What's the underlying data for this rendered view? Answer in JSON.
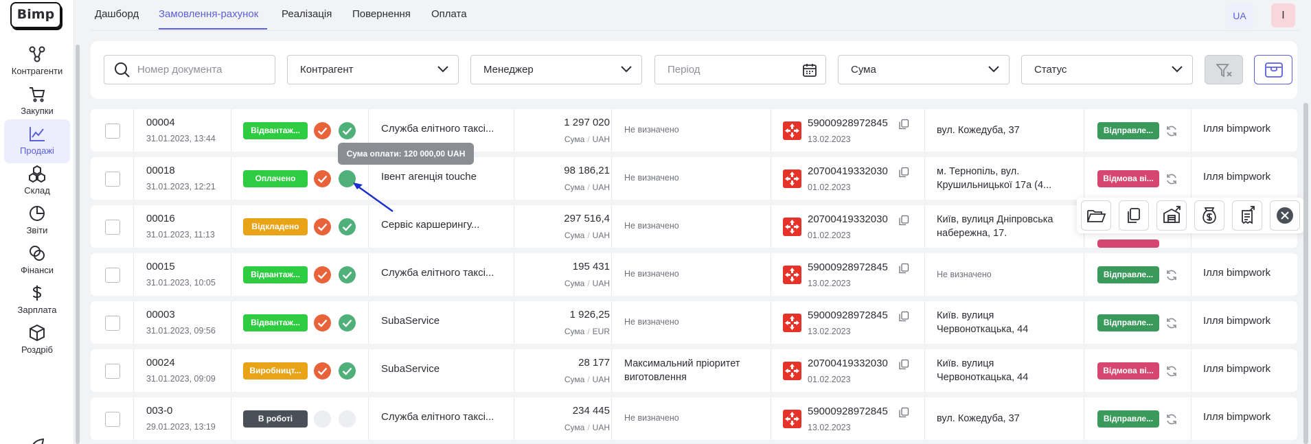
{
  "app": {
    "logo": "Bimp"
  },
  "sidebar": {
    "items": [
      {
        "label": "Контрагенти",
        "icon": "contractors-icon"
      },
      {
        "label": "Закупки",
        "icon": "cart-icon"
      },
      {
        "label": "Продажі",
        "icon": "sales-chart-icon",
        "active": true
      },
      {
        "label": "Склад",
        "icon": "warehouse-boxes-icon"
      },
      {
        "label": "Звіти",
        "icon": "pie-chart-icon"
      },
      {
        "label": "Фінанси",
        "icon": "coins-icon"
      },
      {
        "label": "Зарплата",
        "icon": "dollar-icon"
      },
      {
        "label": "Роздріб",
        "icon": "box-icon"
      }
    ]
  },
  "tabs": [
    {
      "label": "Дашборд"
    },
    {
      "label": "Замовлення-рахунок",
      "active": true
    },
    {
      "label": "Реалізація"
    },
    {
      "label": "Повернення"
    },
    {
      "label": "Оплата"
    }
  ],
  "header": {
    "lang": "UA",
    "avatar_initial": "I"
  },
  "filters": {
    "doc_number_placeholder": "Номер документа",
    "contractor": "Контрагент",
    "manager": "Менеджер",
    "period_placeholder": "Період",
    "sum": "Сума",
    "status": "Статус"
  },
  "tooltip": "Сума оплати: 120 000,00 UAH",
  "colors": {
    "accent": "#5b5fe0",
    "green": "#2ecc40",
    "orange": "#e8a317",
    "dark": "#4a5058",
    "check_orange": "#e8623a",
    "check_green": "#4fb07a",
    "sent": "#3a9a5b",
    "refused": "#d6466f"
  },
  "rows": [
    {
      "number": "00004",
      "date": "31.01.2023, 13:44",
      "status": "Відвантаж...",
      "status_color": "#2ecc40",
      "client": "Служба елітного таксі...",
      "amount": "1 297 020",
      "amount_label": "Сума",
      "currency": "UAH",
      "manager_note": "Не визначено",
      "ttn": "59000928972845",
      "ttn_date": "13.02.2023",
      "address_lines": [
        "вул. Кожедуба, 37"
      ],
      "delivery_status": "Відправле...",
      "delivery_color": "#3a9a5b",
      "user": "Ілля bimpwork"
    },
    {
      "number": "00018",
      "date": "31.01.2023, 12:21",
      "status": "Оплачено",
      "status_color": "#2ecc40",
      "client": "Івент агенція touche",
      "amount": "98 186,21",
      "amount_label": "Сума",
      "currency": "UAH",
      "manager_note": "Не визначено",
      "ttn": "20700419332030",
      "ttn_date": "01.02.2023",
      "address_lines": [
        "м. Тернопіль, вул.",
        "Крушильницької 17а (4..."
      ],
      "delivery_status": "Відмова ві...",
      "delivery_color": "#d6466f",
      "user": "Ілля bimpwork"
    },
    {
      "number": "00016",
      "date": "31.01.2023, 11:13",
      "status": "Відкладено",
      "status_color": "#e8a317",
      "client": "Сервіс каршерингу...",
      "amount": "297 516,4",
      "amount_label": "Сума",
      "currency": "UAH",
      "manager_note": "Не визначено",
      "ttn": "20700419332030",
      "ttn_date": "01.02.2023",
      "address_lines": [
        "Київ, вулиця Дніпровська",
        "набережна, 17."
      ],
      "delivery_status": "",
      "delivery_color": "#d6466f",
      "user": ""
    },
    {
      "number": "00015",
      "date": "31.01.2023, 10:05",
      "status": "Відвантаж...",
      "status_color": "#2ecc40",
      "client": "Служба елітного таксі...",
      "amount": "195 431",
      "amount_label": "Сума",
      "currency": "UAH",
      "manager_note": "Не визначено",
      "ttn": "59000928972845",
      "ttn_date": "13.02.2023",
      "address_lines": [
        "Не визначено"
      ],
      "address_muted": true,
      "delivery_status": "Відправле...",
      "delivery_color": "#3a9a5b",
      "user": "Ілля bimpwork"
    },
    {
      "number": "00003",
      "date": "31.01.2023, 09:56",
      "status": "Відвантаж...",
      "status_color": "#2ecc40",
      "client": "SubaService",
      "amount": "1 926,25",
      "amount_label": "Сума",
      "currency": "EUR",
      "manager_note": "Не визначено",
      "ttn": "59000928972845",
      "ttn_date": "13.02.2023",
      "address_lines": [
        "Київ. вулиця",
        "Червоноткацька, 44"
      ],
      "delivery_status": "Відправле...",
      "delivery_color": "#3a9a5b",
      "user": "Ілля bimpwork"
    },
    {
      "number": "00024",
      "date": "31.01.2023, 09:09",
      "status": "Виробницт...",
      "status_color": "#e8a317",
      "client": "SubaService",
      "amount": "28 177",
      "amount_label": "Сума",
      "currency": "UAH",
      "manager_note_lines": [
        "Максимальний пріоритет",
        "виготовлення"
      ],
      "ttn": "20700419332030",
      "ttn_date": "01.02.2023",
      "address_lines": [
        "Київ. вулиця",
        "Червоноткацька, 44"
      ],
      "delivery_status": "Відмова ві...",
      "delivery_color": "#d6466f",
      "user": "Ілля bimpwork"
    },
    {
      "number": "003-0",
      "date": "29.01.2023, 13:19",
      "status": "В роботі",
      "status_color": "#4a5058",
      "client": "Служба елітного таксі...",
      "amount": "234 445",
      "amount_label": "Сума",
      "currency": "UAH",
      "manager_note": "Не визначено",
      "ttn": "59000928972845",
      "ttn_date": "13.02.2023",
      "address_lines": [
        "вул. Кожедуба, 37"
      ],
      "delivery_status": "Відправле...",
      "delivery_color": "#3a9a5b",
      "user": "Ілля bimpwork",
      "checks": "none"
    }
  ],
  "actions": [
    {
      "icon": "folder-open-icon"
    },
    {
      "icon": "copy-icon"
    },
    {
      "icon": "warehouse-ship-icon"
    },
    {
      "icon": "money-bag-icon"
    },
    {
      "icon": "invoice-icon"
    },
    {
      "icon": "close-circle-icon"
    }
  ]
}
